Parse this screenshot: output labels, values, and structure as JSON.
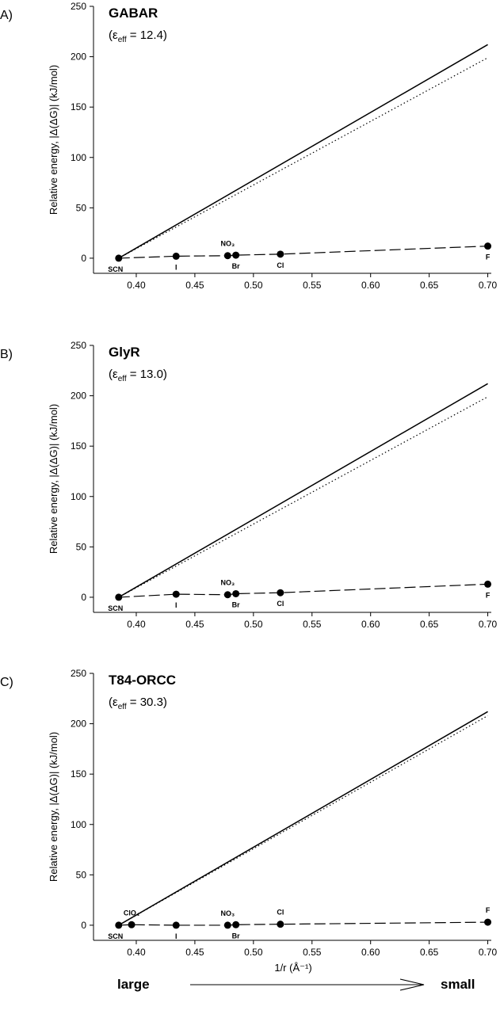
{
  "chart_data": [
    {
      "type": "line",
      "panel": "A)",
      "title": "GABAR",
      "subtitle": {
        "open": "(ε",
        "sub": "eff",
        "rest": " = 12.4)"
      },
      "y_label": "Relative energy, |Δ(ΔG)|  (kJ/mol)",
      "xlim": [
        0.3635,
        0.703
      ],
      "ylim": [
        -15,
        250
      ],
      "xticks": [
        {
          "value": 0.4,
          "label": "0.40"
        },
        {
          "value": 0.45,
          "label": "0.45"
        },
        {
          "value": 0.5,
          "label": "0.50"
        },
        {
          "value": 0.55,
          "label": "0.55"
        },
        {
          "value": 0.6,
          "label": "0.60"
        },
        {
          "value": 0.65,
          "label": "0.65"
        },
        {
          "value": 0.7,
          "label": "0.70"
        }
      ],
      "yticks": [
        0,
        50,
        100,
        150,
        200,
        250
      ],
      "series": [
        {
          "style": "solid",
          "color": "#000000",
          "x": [
            0.385,
            0.7
          ],
          "values": [
            0,
            212
          ]
        },
        {
          "style": "dotted",
          "color": "#000000",
          "x": [
            0.385,
            0.7
          ],
          "values": [
            0,
            199
          ]
        },
        {
          "style": "dashed",
          "color": "#000000",
          "markers": true,
          "x": [
            0.385,
            0.434,
            0.478,
            0.485,
            0.523,
            0.7
          ],
          "values": [
            0,
            2,
            2.5,
            3,
            4,
            12
          ],
          "point_labels": [
            "SCN",
            "I",
            "NO₃",
            "Br",
            "Cl",
            "F"
          ],
          "point_label_side": [
            "below-left",
            "below",
            "above",
            "below",
            "below",
            "below"
          ]
        }
      ]
    },
    {
      "type": "line",
      "panel": "B)",
      "title": "GlyR",
      "subtitle": {
        "open": "(ε",
        "sub": "eff",
        "rest": " = 13.0)"
      },
      "y_label": "Relative energy, |Δ(ΔG)|  (kJ/mol)",
      "xlim": [
        0.3635,
        0.703
      ],
      "ylim": [
        -15,
        250
      ],
      "xticks": [
        {
          "value": 0.4,
          "label": "0.40"
        },
        {
          "value": 0.45,
          "label": "0.45"
        },
        {
          "value": 0.5,
          "label": "0.50"
        },
        {
          "value": 0.55,
          "label": "0.55"
        },
        {
          "value": 0.6,
          "label": "0.60"
        },
        {
          "value": 0.65,
          "label": "0.65"
        },
        {
          "value": 0.7,
          "label": "0.70"
        }
      ],
      "yticks": [
        0,
        50,
        100,
        150,
        200,
        250
      ],
      "series": [
        {
          "style": "solid",
          "color": "#000000",
          "x": [
            0.385,
            0.7
          ],
          "values": [
            0,
            212
          ]
        },
        {
          "style": "dotted",
          "color": "#000000",
          "x": [
            0.385,
            0.7
          ],
          "values": [
            0,
            199
          ]
        },
        {
          "style": "dashed",
          "color": "#000000",
          "markers": true,
          "x": [
            0.385,
            0.434,
            0.478,
            0.485,
            0.523,
            0.7
          ],
          "values": [
            0,
            3,
            2.5,
            3.5,
            4.5,
            13
          ],
          "point_labels": [
            "SCN",
            "I",
            "NO₃",
            "Br",
            "Cl",
            "F"
          ],
          "point_label_side": [
            "below-left",
            "below",
            "above",
            "below",
            "below",
            "below"
          ]
        }
      ]
    },
    {
      "type": "line",
      "panel": "C)",
      "title": "T84-ORCC",
      "subtitle": {
        "open": "(ε",
        "sub": "eff",
        "rest": " = 30.3)"
      },
      "y_label": "Relative energy, |Δ(ΔG)|  (kJ/mol)",
      "xlim": [
        0.3635,
        0.703
      ],
      "ylim": [
        -15,
        250
      ],
      "xticks": [
        {
          "value": 0.4,
          "label": "0.40"
        },
        {
          "value": 0.45,
          "label": "0.45"
        },
        {
          "value": 0.5,
          "label": "0.50"
        },
        {
          "value": 0.55,
          "label": "0.55"
        },
        {
          "value": 0.6,
          "label": "0.60"
        },
        {
          "value": 0.65,
          "label": "0.65"
        },
        {
          "value": 0.7,
          "label": "0.70"
        }
      ],
      "yticks": [
        0,
        50,
        100,
        150,
        200,
        250
      ],
      "series": [
        {
          "style": "solid",
          "color": "#000000",
          "x": [
            0.385,
            0.7
          ],
          "values": [
            0,
            212
          ]
        },
        {
          "style": "dotted",
          "color": "#000000",
          "x": [
            0.385,
            0.7
          ],
          "values": [
            0,
            208
          ]
        },
        {
          "style": "dashed",
          "color": "#000000",
          "markers": true,
          "x": [
            0.385,
            0.396,
            0.434,
            0.478,
            0.485,
            0.523,
            0.7
          ],
          "values": [
            0,
            0.5,
            0,
            0,
            0.5,
            1,
            3
          ],
          "point_labels": [
            "SCN",
            "ClO₄",
            "I",
            "NO₃",
            "Br",
            "Cl",
            "F"
          ],
          "point_label_side": [
            "below-left",
            "above",
            "below",
            "above",
            "below",
            "above",
            "above"
          ]
        }
      ]
    }
  ],
  "footer": {
    "x_label": "1/r (Å⁻¹)",
    "left": "large",
    "right": "small"
  }
}
